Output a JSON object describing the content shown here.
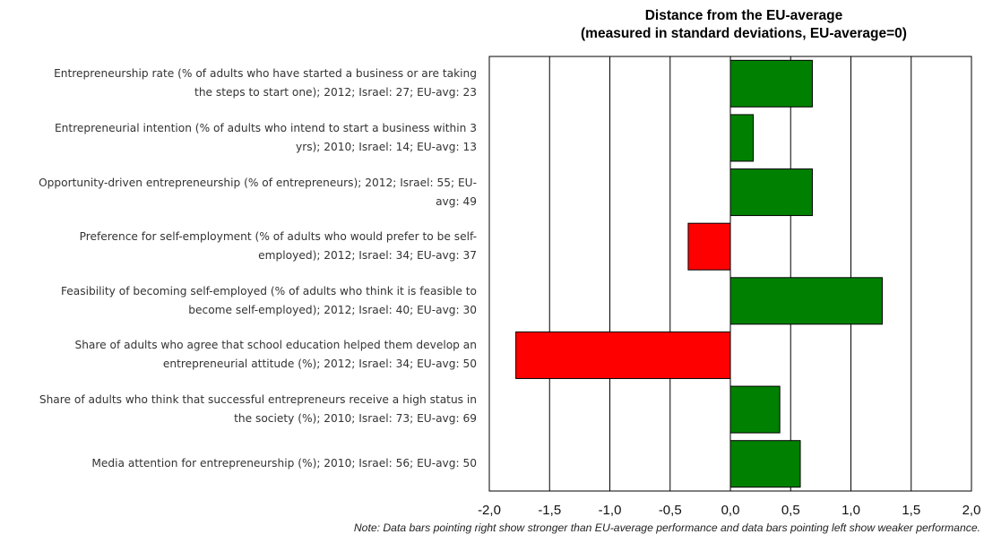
{
  "chart_data": {
    "type": "bar",
    "orientation": "horizontal",
    "title_lines": [
      "Distance from the EU-average",
      "(measured in standard deviations, EU-average=0)"
    ],
    "categories": [
      [
        "Entrepreneurship rate (% of adults who have started a business or are taking",
        "the steps to start one); 2012; Israel: 27; EU-avg: 23"
      ],
      [
        "Entrepreneurial intention (% of adults who intend to start a business within 3",
        "yrs); 2010; Israel: 14; EU-avg: 13"
      ],
      [
        "Opportunity-driven entrepreneurship (% of entrepreneurs); 2012; Israel: 55; EU-",
        "avg: 49"
      ],
      [
        "Preference for self-employment (% of adults who would prefer to be self-",
        "employed); 2012; Israel: 34; EU-avg: 37"
      ],
      [
        "Feasibility of becoming self-employed (% of adults who think it is feasible to",
        "become self-employed); 2012; Israel: 40; EU-avg: 30"
      ],
      [
        "Share of adults who agree that school education helped them develop an",
        "entrepreneurial attitude (%); 2012; Israel: 34; EU-avg: 50"
      ],
      [
        "Share of adults who think that successful entrepreneurs receive a high status in",
        "the society (%); 2010; Israel: 73; EU-avg: 69"
      ],
      [
        "Media attention for entrepreneurship (%); 2010; Israel: 56; EU-avg: 50"
      ]
    ],
    "values": [
      0.68,
      0.19,
      0.68,
      -0.35,
      1.26,
      -1.78,
      0.41,
      0.58
    ],
    "xlim": [
      -2.0,
      2.0
    ],
    "xticks": [
      -2.0,
      -1.5,
      -1.0,
      -0.5,
      0.0,
      0.5,
      1.0,
      1.5,
      2.0
    ],
    "xtick_labels": [
      "-2,0",
      "-1,5",
      "-1,0",
      "-0,5",
      "0,0",
      "0,5",
      "1,0",
      "1,5",
      "2,0"
    ],
    "grid": true,
    "colors": {
      "positive": "#008000",
      "negative": "#ff0000",
      "bar_outline": "#000000",
      "gridline": "#000000"
    },
    "note": "Note: Data bars pointing right show stronger than EU-average performance and data bars pointing left show weaker performance."
  }
}
